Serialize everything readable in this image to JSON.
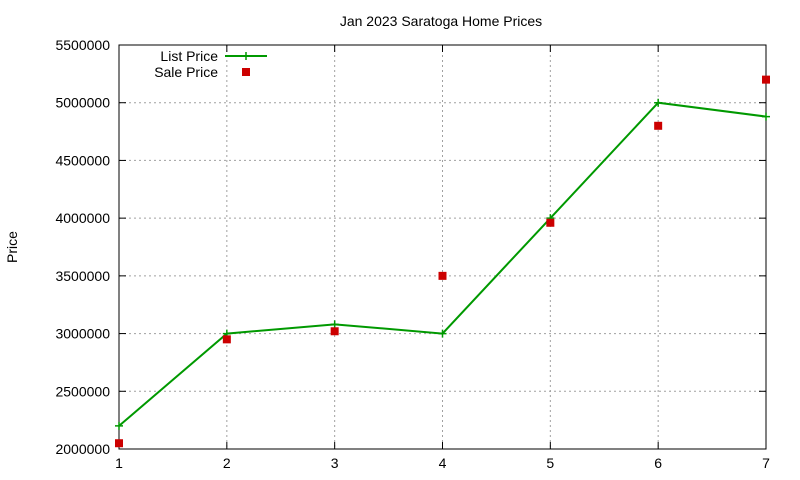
{
  "chart_data": {
    "type": "line",
    "title": "Jan 2023 Saratoga Home Prices",
    "xlabel": "",
    "ylabel": "Price",
    "xlim": [
      1,
      7
    ],
    "ylim": [
      2000000,
      5500000
    ],
    "x_ticks": [
      1,
      2,
      3,
      4,
      5,
      6,
      7
    ],
    "y_ticks": [
      2000000,
      2500000,
      3000000,
      3500000,
      4000000,
      4500000,
      5000000,
      5500000
    ],
    "grid": true,
    "legend_position": "top-left",
    "series": [
      {
        "name": "List Price",
        "style": "line-with-plus-markers",
        "color": "#009900",
        "x": [
          1,
          2,
          3,
          4,
          5,
          6,
          7
        ],
        "values": [
          2200000,
          3000000,
          3080000,
          3000000,
          4000000,
          5000000,
          4880000
        ]
      },
      {
        "name": "Sale Price",
        "style": "square-markers",
        "color": "#cc0000",
        "x": [
          1,
          2,
          3,
          4,
          5,
          6,
          7
        ],
        "values": [
          2050000,
          2950000,
          3020000,
          3500000,
          3960000,
          4800000,
          5200000
        ]
      }
    ]
  }
}
